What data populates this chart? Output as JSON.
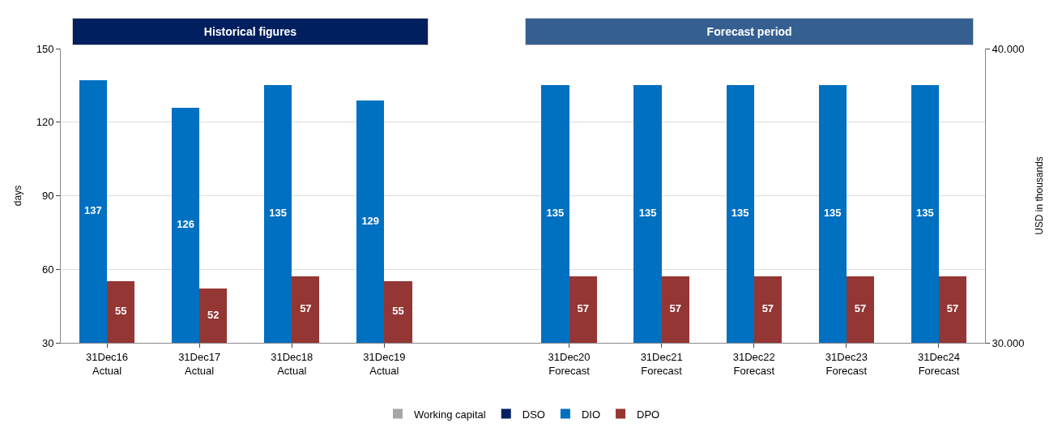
{
  "chart_data": {
    "type": "bar",
    "categories": [
      "31Dec16\nActual",
      "31Dec17\nActual",
      "31Dec18\nActual",
      "31Dec19\nActual",
      null,
      "31Dec20\nForecast",
      "31Dec21\nForecast",
      "31Dec22\nForecast",
      "31Dec23\nForecast",
      "31Dec24\nForecast"
    ],
    "series": [
      {
        "name": "Working capital",
        "color": "#a6a6a6",
        "axis": "y2",
        "values": [
          null,
          null,
          null,
          null,
          null,
          null,
          null,
          null,
          null,
          null
        ]
      },
      {
        "name": "DSO",
        "color": "#002060",
        "values": [
          null,
          null,
          null,
          null,
          null,
          null,
          null,
          null,
          null,
          null
        ]
      },
      {
        "name": "DIO",
        "color": "#0070c0",
        "values": [
          137,
          126,
          135,
          129,
          null,
          135,
          135,
          135,
          135,
          135
        ]
      },
      {
        "name": "DPO",
        "color": "#943634",
        "values": [
          55,
          52,
          57,
          55,
          null,
          57,
          57,
          57,
          57,
          57
        ]
      }
    ],
    "ylabel": "days",
    "y2label": "USD in thousands",
    "ylim": [
      30,
      150
    ],
    "yticks": [
      30,
      60,
      90,
      120,
      150
    ],
    "y2lim": [
      30000,
      40000
    ],
    "y2ticks": [
      {
        "value": 30000,
        "label": "30.000"
      },
      {
        "value": 40000,
        "label": "40.000"
      }
    ],
    "annotations": [
      "Historical figures",
      "Forecast period"
    ],
    "data_labels": true,
    "grid": "y",
    "legend": "bottom"
  }
}
